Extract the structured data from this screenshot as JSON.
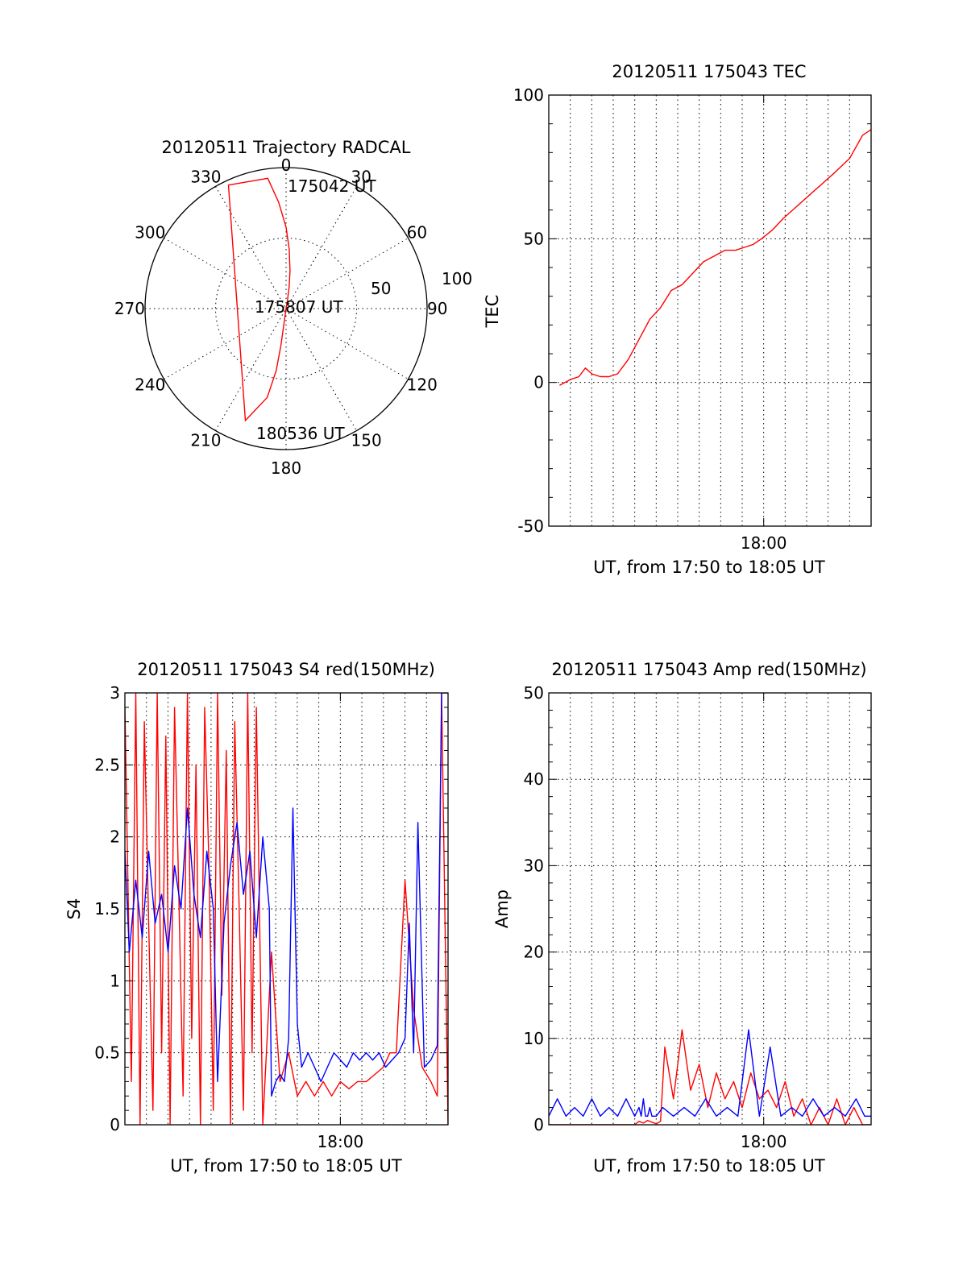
{
  "chart_data": [
    {
      "id": "trajectory",
      "type": "polar",
      "title": "20120511 Trajectory RADCAL",
      "angle_labels": [
        "0",
        "30",
        "60",
        "90",
        "120",
        "150",
        "180",
        "210",
        "240",
        "270",
        "300",
        "330"
      ],
      "radial_labels": [
        "50",
        "100"
      ],
      "annotations": [
        "175042 UT",
        "175807 UT",
        "180536 UT"
      ],
      "series": [
        {
          "color": "#ff0000",
          "points": [
            [
              11,
              93
            ],
            [
              10,
              86
            ],
            [
              8,
              76
            ],
            [
              6,
              66
            ],
            [
              3,
              52
            ],
            [
              0,
              38
            ],
            [
              -4,
              22
            ],
            [
              -8,
              6
            ],
            [
              -25,
              3
            ],
            [
              -160,
              14
            ],
            [
              -168,
              32
            ],
            [
              -171,
              50
            ],
            [
              -172,
              66
            ],
            [
              -172,
              80
            ],
            [
              -171,
              90
            ]
          ]
        }
      ],
      "grid": true
    },
    {
      "id": "tec",
      "type": "line",
      "title": "20120511 175043 TEC",
      "xlabel": "UT, from 17:50 to 18:05 UT",
      "ylabel": "TEC",
      "x_tick_labels": [
        {
          "x": 18.0,
          "label": "18:00"
        }
      ],
      "y_tick_labels": [
        "100",
        "50",
        "0",
        "-50"
      ],
      "xlim": [
        17.8333,
        18.0833
      ],
      "ylim": [
        -50,
        100
      ],
      "series": [
        {
          "color": "#ff0000",
          "x": [
            17.8417,
            17.85,
            17.8567,
            17.8617,
            17.8667,
            17.8733,
            17.88,
            17.8867,
            17.895,
            17.9033,
            17.9117,
            17.92,
            17.9283,
            17.9367,
            17.945,
            17.9533,
            17.9617,
            17.97,
            17.9783,
            17.985,
            17.9917,
            17.9983,
            18.0067,
            18.015,
            18.025,
            18.035,
            18.045,
            18.055,
            18.0667,
            18.0717,
            18.0767,
            18.0833
          ],
          "y": [
            -1,
            1,
            2,
            5,
            3,
            2,
            2,
            3,
            8,
            15,
            22,
            26,
            32,
            34,
            38,
            42,
            44,
            46,
            46,
            47,
            48,
            50,
            53,
            57,
            61,
            65,
            69,
            73,
            78,
            82,
            86,
            88
          ]
        }
      ],
      "grid": true
    },
    {
      "id": "s4",
      "type": "line",
      "title": "20120511 175043 S4 red(150MHz)",
      "xlabel": "UT, from 17:50 to 18:05 UT",
      "ylabel": "S4",
      "x_tick_labels": [
        {
          "x": 18.0,
          "label": "18:00"
        }
      ],
      "y_tick_labels": [
        "3",
        "2.5",
        "2",
        "1.5",
        "1",
        "0.5",
        "0"
      ],
      "xlim": [
        17.8333,
        18.0833
      ],
      "ylim": [
        0,
        3
      ],
      "series": [
        {
          "color": "#ff0000",
          "x": [
            17.8333,
            17.8383,
            17.8417,
            17.845,
            17.8483,
            17.8517,
            17.855,
            17.8583,
            17.8617,
            17.865,
            17.8683,
            17.8717,
            17.875,
            17.8783,
            17.8817,
            17.885,
            17.8883,
            17.8917,
            17.895,
            17.8983,
            17.9017,
            17.905,
            17.9083,
            17.9117,
            17.915,
            17.9183,
            17.9217,
            17.925,
            17.9283,
            17.9317,
            17.935,
            17.94,
            17.9467,
            17.9533,
            17.96,
            17.9667,
            17.9733,
            17.98,
            17.9867,
            17.9933,
            18.0,
            18.0067,
            18.0133,
            18.02,
            18.0267,
            18.0333,
            18.0383,
            18.0433,
            18.05,
            18.0567,
            18.0633,
            18.07,
            18.075,
            18.0783,
            18.0833
          ],
          "y": [
            2.9,
            0.3,
            3.0,
            0.0,
            2.8,
            1.4,
            0.1,
            3.0,
            0.5,
            2.7,
            0.0,
            2.9,
            1.6,
            0.2,
            3.0,
            0.6,
            2.5,
            0.0,
            2.9,
            1.8,
            0.1,
            3.0,
            0.9,
            2.6,
            0.0,
            2.8,
            1.5,
            0.1,
            3.0,
            0.5,
            2.9,
            0.0,
            1.2,
            0.3,
            0.5,
            0.2,
            0.3,
            0.2,
            0.3,
            0.2,
            0.3,
            0.25,
            0.3,
            0.3,
            0.35,
            0.4,
            0.5,
            0.5,
            1.7,
            0.8,
            0.4,
            0.3,
            0.2,
            3.0,
            0.0
          ]
        },
        {
          "color": "#0000ff",
          "x": [
            17.8333,
            17.8367,
            17.8417,
            17.8467,
            17.8517,
            17.8567,
            17.8617,
            17.8667,
            17.8717,
            17.8767,
            17.8817,
            17.8867,
            17.8917,
            17.8967,
            17.9017,
            17.905,
            17.91,
            17.915,
            17.92,
            17.925,
            17.93,
            17.935,
            17.94,
            17.945,
            17.9467,
            17.95,
            17.9533,
            17.9567,
            17.96,
            17.9633,
            17.9667,
            17.97,
            17.975,
            17.98,
            17.985,
            17.99,
            17.995,
            18.0,
            18.005,
            18.01,
            18.015,
            18.02,
            18.025,
            18.03,
            18.035,
            18.04,
            18.045,
            18.05,
            18.0533,
            18.0567,
            18.06,
            18.065,
            18.07,
            18.075,
            18.0783,
            18.0833
          ],
          "y": [
            1.9,
            1.2,
            1.7,
            1.3,
            1.9,
            1.4,
            1.6,
            1.2,
            1.8,
            1.5,
            2.2,
            1.6,
            1.3,
            1.9,
            1.5,
            0.3,
            1.4,
            1.8,
            2.1,
            1.6,
            1.9,
            1.3,
            2.0,
            1.5,
            0.2,
            0.3,
            0.35,
            0.3,
            0.6,
            2.2,
            0.7,
            0.4,
            0.5,
            0.4,
            0.3,
            0.4,
            0.5,
            0.45,
            0.4,
            0.5,
            0.45,
            0.5,
            0.45,
            0.5,
            0.4,
            0.45,
            0.5,
            0.6,
            1.4,
            0.5,
            2.1,
            0.4,
            0.45,
            0.55,
            3.0,
            3.0
          ]
        }
      ],
      "grid": true
    },
    {
      "id": "amp",
      "type": "line",
      "title": "20120511 175043 Amp red(150MHz)",
      "xlabel": "UT, from 17:50 to 18:05 UT",
      "ylabel": "Amp",
      "x_tick_labels": [
        {
          "x": 18.0,
          "label": "18:00"
        }
      ],
      "y_tick_labels": [
        "50",
        "40",
        "30",
        "20",
        "10",
        "0"
      ],
      "xlim": [
        17.8333,
        18.0833
      ],
      "ylim": [
        0,
        50
      ],
      "series": [
        {
          "color": "#ff0000",
          "x": [
            17.8333,
            17.8667,
            17.9,
            17.9033,
            17.9067,
            17.91,
            17.9133,
            17.9167,
            17.92,
            17.9233,
            17.93,
            17.9367,
            17.9433,
            17.95,
            17.9567,
            17.9633,
            17.97,
            17.9767,
            17.9833,
            17.99,
            17.9967,
            18.0033,
            18.01,
            18.0167,
            18.0233,
            18.03,
            18.0367,
            18.0433,
            18.05,
            18.0567,
            18.0633,
            18.07,
            18.0767,
            18.0833
          ],
          "y": [
            0,
            0,
            0,
            0.4,
            0.2,
            0.5,
            0.3,
            0.1,
            0.4,
            9,
            3,
            11,
            4,
            7,
            2,
            6,
            3,
            5,
            2,
            6,
            3,
            4,
            2,
            5,
            1,
            3,
            0,
            2,
            0,
            3,
            0,
            2,
            0,
            0
          ]
        },
        {
          "color": "#0000ff",
          "x": [
            17.8333,
            17.84,
            17.8467,
            17.8533,
            17.86,
            17.8667,
            17.8733,
            17.88,
            17.8867,
            17.8933,
            17.9,
            17.9033,
            17.905,
            17.9067,
            17.9083,
            17.91,
            17.9117,
            17.9133,
            17.9167,
            17.9217,
            17.93,
            17.9383,
            17.9467,
            17.955,
            17.9633,
            17.9717,
            17.98,
            17.9883,
            17.9967,
            18.005,
            18.0133,
            18.0217,
            18.03,
            18.0383,
            18.0467,
            18.055,
            18.0633,
            18.0717,
            18.0783,
            18.0833
          ],
          "y": [
            1,
            3,
            1,
            2,
            1,
            3,
            1,
            2,
            1,
            3,
            1,
            2,
            1,
            3,
            1,
            1,
            2,
            1,
            1,
            2,
            1,
            2,
            1,
            3,
            1,
            2,
            1,
            11,
            1,
            9,
            1,
            2,
            1,
            3,
            1,
            2,
            1,
            3,
            1,
            1
          ]
        }
      ],
      "grid": true
    }
  ]
}
